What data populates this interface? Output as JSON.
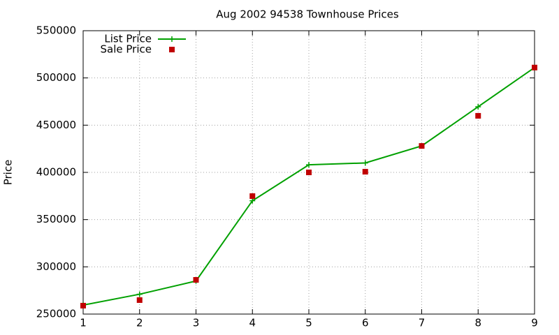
{
  "chart_data": {
    "type": "line",
    "title": "Aug 2002 94538 Townhouse Prices",
    "y_label": "Price",
    "x": [
      1,
      2,
      3,
      4,
      5,
      6,
      7,
      8,
      9
    ],
    "series": [
      {
        "name": "List Price",
        "color": "#00a000",
        "style": "linespoints",
        "values": [
          259500,
          271000,
          285000,
          370000,
          408000,
          410000,
          428000,
          469500,
          511000
        ]
      },
      {
        "name": "Sale Price",
        "color": "#c00000",
        "style": "points",
        "values": [
          258900,
          264800,
          286200,
          374900,
          400000,
          400700,
          428000,
          459900,
          511000
        ]
      }
    ],
    "xlim": [
      1,
      9
    ],
    "xticks": [
      1,
      2,
      3,
      4,
      5,
      6,
      7,
      8,
      9
    ],
    "ylim": [
      250000,
      550000
    ],
    "yticks": [
      250000,
      300000,
      350000,
      400000,
      450000,
      500000,
      550000
    ],
    "grid": true,
    "legend": "top-left"
  }
}
